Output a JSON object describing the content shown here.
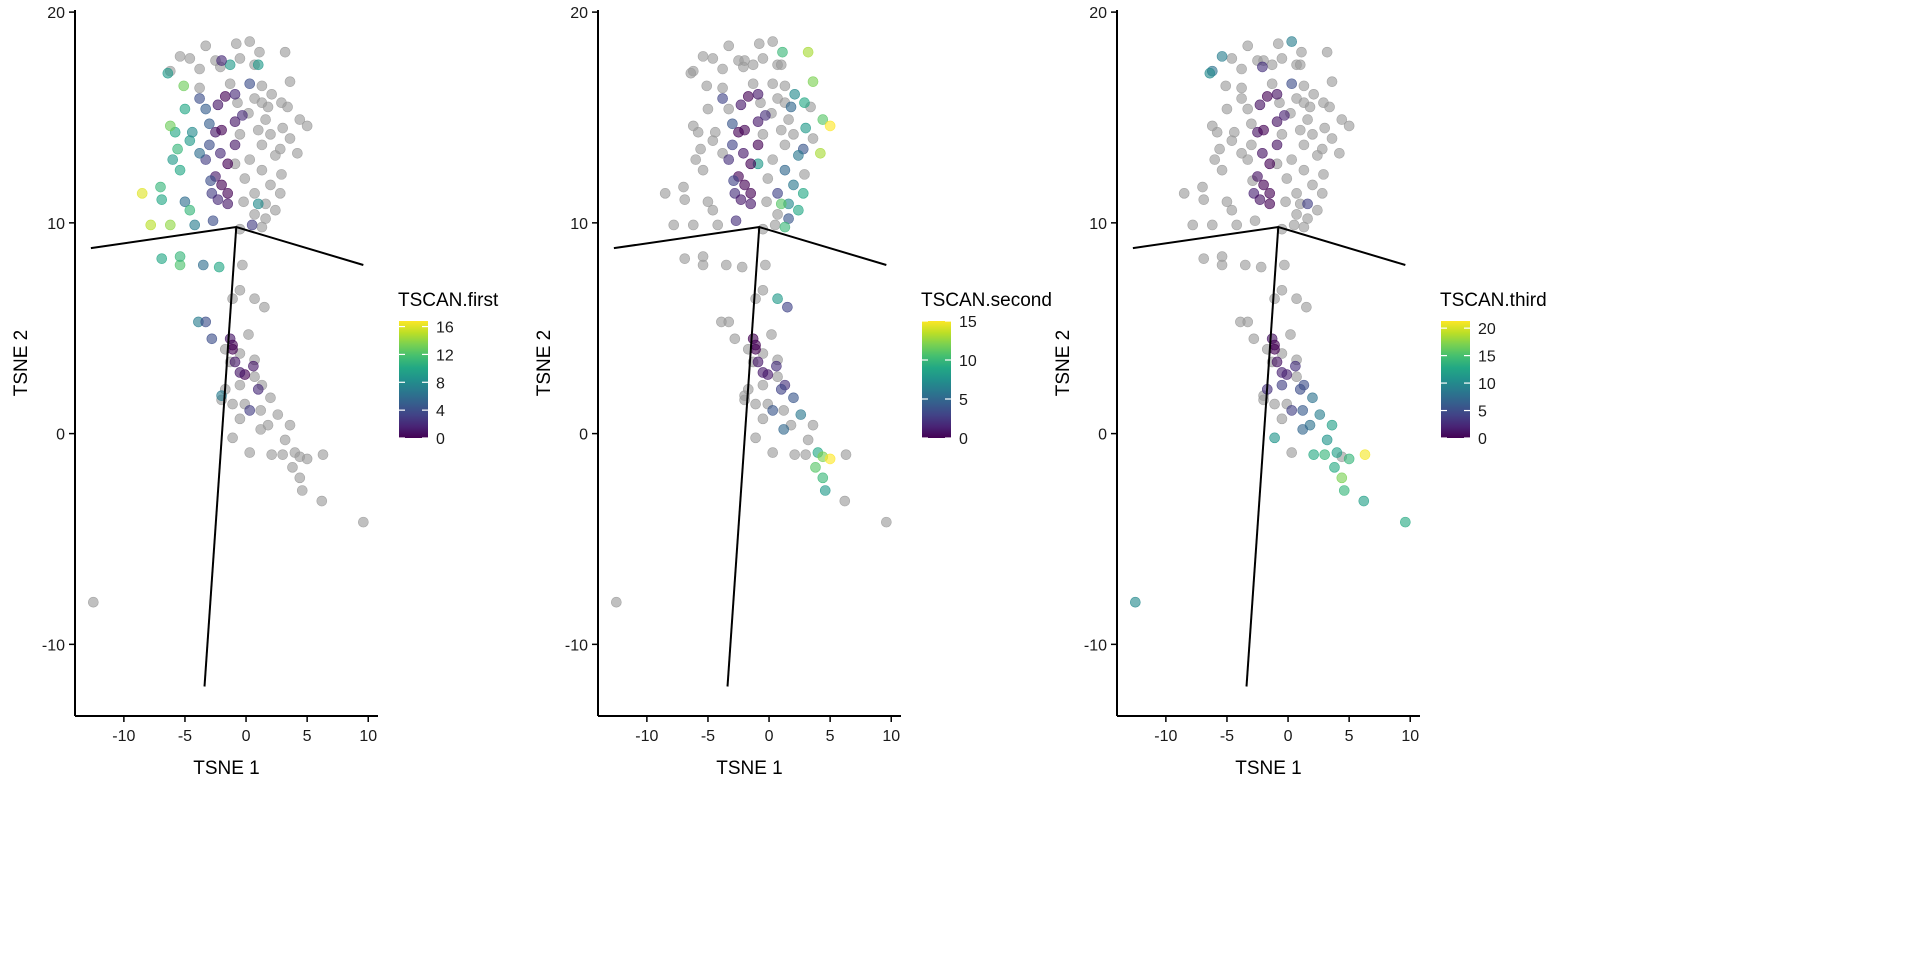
{
  "chart_data": {
    "type": "scatter",
    "xlabel": "TSNE 1",
    "ylabel": "TSNE 2",
    "xlim": [
      -14,
      10.8
    ],
    "ylim": [
      -13.4,
      20.1
    ],
    "xticks": [
      "-10",
      "-5",
      "0",
      "5",
      "10"
    ],
    "yticks": [
      "-10",
      "0",
      "10",
      "20"
    ],
    "grid": false,
    "na_color": "#999999",
    "colormap": "viridis",
    "legend_placement": "right",
    "trajectory": [
      [
        [
          -12.7,
          8.8
        ],
        [
          -0.8,
          9.8
        ],
        [
          9.6,
          8.0
        ]
      ],
      [
        [
          -0.8,
          9.8
        ],
        [
          -3.4,
          -12.0
        ]
      ]
    ],
    "x": [
      -3.3,
      -0.8,
      0.3,
      1.1,
      3.2,
      -5.4,
      -4.6,
      -2.5,
      -0.5,
      0.7,
      -6.2,
      -3.8,
      -2.1,
      3.6,
      -1.3,
      1.3,
      2.1,
      -3.8,
      0.7,
      2.9,
      1.3,
      -0.7,
      1.8,
      4.4,
      3.4,
      5,
      0.2,
      1.6,
      3,
      1,
      2,
      3.6,
      -0.5,
      1.3,
      2.8,
      4.2,
      0.3,
      2.4,
      -0.9,
      1.3,
      2.9,
      -0.1,
      2,
      0.7,
      2.8,
      1.6,
      2.4,
      0.7,
      1.6,
      -0.2,
      1.3,
      -0.5,
      -8.5,
      -7.8,
      -6.2,
      -7,
      -6.9,
      -5.8,
      -6.2,
      -5.6,
      -6,
      -5.4,
      -4.6,
      -4.4,
      -5,
      -5.1,
      -6.4,
      -5,
      -4.6,
      -1.3,
      1,
      1,
      -5.4,
      -5.4,
      -6.9,
      -4.2,
      -3.5,
      -3.9,
      -2.2,
      -3.3,
      -2.8,
      -2,
      -3.8,
      -3.3,
      -3,
      -2.5,
      -2,
      -2.3,
      -1.7,
      -0.9,
      -0.3,
      0.3,
      -0.9,
      -2,
      -3,
      -2.5,
      -2,
      -1.5,
      -2.1,
      -1.5,
      -2.9,
      -2.8,
      -2.3,
      -1.5,
      -0.9,
      -3.3,
      0.5,
      -3.8,
      -2.7,
      -1.1,
      -0.5,
      1.5,
      -0.3,
      0.2,
      -0.5,
      0.7,
      -1.7,
      -0.5,
      0.7,
      1.3,
      2,
      -0.1,
      1.2,
      2.6,
      3.6,
      -0.5,
      1.8,
      3.2,
      -1.1,
      0.3,
      2.1,
      4,
      4.4,
      5,
      3.8,
      4.4,
      4.6,
      6.2,
      9.6,
      -12.5,
      -2,
      -1.1,
      1.2,
      3,
      -1.7,
      -1.3,
      6.3,
      0.7,
      -1.3,
      -1.1,
      -0.9,
      -0.1,
      0.6,
      1,
      0.3,
      -0.5,
      -1.1
    ],
    "y": [
      18.4,
      18.5,
      18.6,
      18.1,
      18.1,
      17.9,
      17.8,
      17.7,
      17.8,
      17.5,
      17.2,
      17.3,
      17.4,
      16.7,
      16.6,
      16.5,
      16.1,
      16.4,
      15.9,
      15.7,
      15.7,
      15.7,
      15.5,
      14.9,
      15.5,
      14.6,
      15.2,
      14.9,
      14.5,
      14.4,
      14.2,
      14,
      14.2,
      13.7,
      13.5,
      13.3,
      13,
      13.2,
      12.8,
      12.5,
      12.3,
      12.1,
      11.8,
      11.4,
      11.4,
      10.9,
      10.6,
      10.4,
      10.2,
      11,
      9.8,
      9.7,
      11.4,
      9.9,
      9.9,
      11.7,
      11.1,
      14.3,
      14.6,
      13.5,
      13,
      12.5,
      13.9,
      14.3,
      15.4,
      16.5,
      17.1,
      11,
      10.6,
      17.5,
      17.5,
      10.9,
      8,
      8.4,
      8.3,
      9.9,
      8,
      5.3,
      7.9,
      5.3,
      4.5,
      1.8,
      15.9,
      15.4,
      14.7,
      14.3,
      14.4,
      15.6,
      16,
      14.8,
      15.1,
      16.6,
      16.1,
      17.7,
      13.7,
      12.2,
      11.8,
      11.4,
      13.3,
      12.8,
      12,
      11.4,
      11.1,
      10.9,
      13.7,
      13,
      9.9,
      13.3,
      10.1,
      6.4,
      6.8,
      6,
      8,
      4.7,
      3.8,
      3.5,
      2.1,
      2.3,
      2.7,
      2.3,
      1.7,
      1.4,
      1.1,
      0.9,
      0.4,
      0.7,
      0.4,
      -0.3,
      -0.2,
      -0.9,
      -1,
      -0.9,
      -1.1,
      -1.2,
      -1.6,
      -2.1,
      -2.7,
      -3.2,
      -4.2,
      -8,
      1.6,
      1.4,
      0.2,
      -1,
      4,
      3.4,
      -1.0,
      6.4,
      4.5,
      4,
      3.4,
      2.8,
      3.2,
      2.1,
      1.1,
      2.9,
      4.2
    ],
    "panels": [
      {
        "legend_title": "TSCAN.first",
        "color_range": [
          0,
          16.8
        ],
        "colorbar_ticks": [
          "0",
          "4",
          "8",
          "12",
          "16"
        ],
        "values": [
          null,
          null,
          null,
          null,
          null,
          null,
          null,
          null,
          null,
          null,
          null,
          null,
          null,
          null,
          null,
          null,
          null,
          null,
          null,
          null,
          null,
          null,
          null,
          null,
          null,
          null,
          null,
          null,
          null,
          null,
          null,
          null,
          null,
          null,
          null,
          null,
          null,
          null,
          null,
          null,
          null,
          null,
          null,
          null,
          null,
          null,
          null,
          null,
          null,
          null,
          null,
          null,
          16,
          15,
          14,
          11,
          10,
          10,
          13,
          11,
          9,
          10,
          9,
          8,
          10,
          13,
          9,
          6,
          11,
          9,
          9,
          8,
          12,
          11,
          10,
          7,
          6,
          7,
          10,
          4,
          4,
          7,
          4,
          5,
          5,
          1,
          0,
          1,
          0,
          1,
          2,
          4,
          2,
          2,
          4,
          1,
          0,
          0,
          2,
          0,
          4,
          3,
          2,
          1,
          1,
          3,
          3,
          6,
          4,
          null,
          null,
          null,
          null,
          null,
          null,
          null,
          null,
          null,
          null,
          null,
          null,
          null,
          null,
          null,
          null,
          null,
          null,
          null,
          null,
          null,
          null,
          null,
          null,
          null,
          null,
          null,
          null,
          null,
          null,
          null,
          null,
          null,
          null,
          null,
          null,
          null,
          null,
          null,
          1,
          0,
          1,
          0,
          1,
          2,
          3,
          1,
          0
        ]
      },
      {
        "legend_title": "TSCAN.second",
        "color_range": [
          0,
          15
        ],
        "colorbar_ticks": [
          "0",
          "5",
          "10",
          "15"
        ],
        "values": [
          null,
          null,
          null,
          10,
          13,
          null,
          null,
          null,
          null,
          null,
          null,
          null,
          null,
          12,
          null,
          null,
          7,
          null,
          null,
          9,
          null,
          null,
          5,
          11,
          null,
          15,
          null,
          null,
          8,
          null,
          null,
          null,
          null,
          null,
          4,
          13,
          null,
          6,
          8,
          5,
          null,
          null,
          6,
          3,
          9,
          7,
          9,
          null,
          4,
          null,
          10,
          null,
          null,
          null,
          null,
          null,
          null,
          null,
          null,
          null,
          null,
          null,
          null,
          null,
          null,
          null,
          null,
          null,
          null,
          null,
          null,
          11,
          null,
          null,
          null,
          null,
          null,
          null,
          null,
          null,
          null,
          null,
          3,
          null,
          4,
          0,
          0,
          1,
          0,
          1,
          2,
          null,
          1,
          null,
          3,
          0,
          0,
          0,
          1,
          0,
          3,
          2,
          1,
          1,
          0,
          2,
          null,
          null,
          2,
          null,
          null,
          3,
          null,
          null,
          null,
          null,
          null,
          null,
          null,
          2,
          4,
          null,
          null,
          6,
          null,
          null,
          null,
          null,
          null,
          null,
          null,
          9,
          12,
          15,
          11,
          10,
          8,
          null,
          null,
          null,
          null,
          null,
          5,
          null,
          null,
          null,
          null,
          8,
          0,
          0,
          1,
          1,
          2,
          3,
          4,
          1,
          0
        ]
      },
      {
        "legend_title": "TSCAN.third",
        "color_range": [
          0,
          21.3
        ],
        "colorbar_ticks": [
          "0",
          "5",
          "10",
          "15",
          "20"
        ],
        "values": [
          null,
          null,
          9,
          null,
          null,
          9,
          null,
          null,
          null,
          null,
          8,
          null,
          3,
          null,
          null,
          null,
          null,
          null,
          null,
          null,
          null,
          null,
          null,
          null,
          null,
          null,
          null,
          null,
          null,
          null,
          null,
          null,
          null,
          null,
          null,
          null,
          null,
          null,
          null,
          null,
          null,
          null,
          null,
          null,
          null,
          4,
          null,
          null,
          null,
          null,
          null,
          null,
          null,
          null,
          null,
          null,
          null,
          null,
          null,
          null,
          null,
          null,
          null,
          null,
          null,
          null,
          10,
          null,
          null,
          null,
          null,
          null,
          null,
          null,
          null,
          null,
          null,
          null,
          null,
          null,
          null,
          null,
          null,
          null,
          null,
          1,
          0,
          1,
          0,
          1,
          2,
          5,
          1,
          null,
          null,
          1,
          0,
          0,
          1,
          0,
          null,
          2,
          1,
          0,
          1,
          null,
          null,
          null,
          null,
          null,
          null,
          null,
          null,
          null,
          null,
          null,
          3,
          4,
          null,
          5,
          8,
          null,
          6,
          9,
          12,
          null,
          8,
          11,
          11,
          null,
          13,
          12,
          null,
          14,
          13,
          17,
          14,
          12,
          13,
          10,
          null,
          null,
          7,
          14,
          null,
          null,
          21,
          null,
          1,
          0,
          1,
          2,
          3,
          5,
          4,
          2,
          0
        ]
      }
    ]
  }
}
